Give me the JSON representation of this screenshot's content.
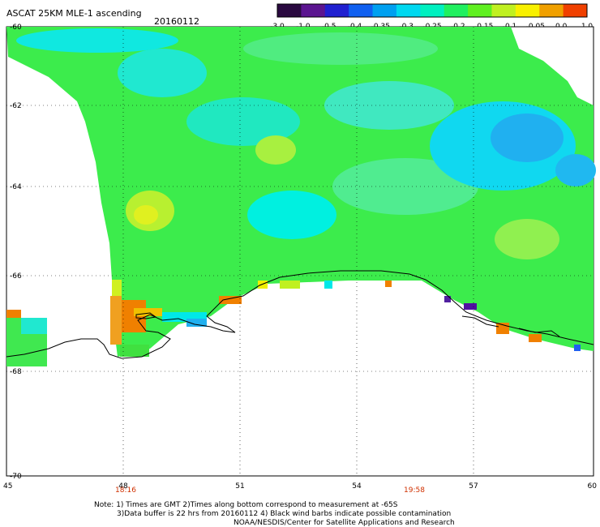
{
  "title": "ASCAT 25KM MLE-1 ascending",
  "date": "20160112",
  "colorbar": {
    "tick_labels": [
      "-3.0",
      "-1.0",
      "-0.5",
      "-0.4",
      "-0.35",
      "-0.3",
      "-0.25",
      "-0.2",
      "-0.15",
      "-0.1",
      "-0.05",
      "0.0",
      "1.0"
    ],
    "colors": [
      "#2a0a40",
      "#5b1590",
      "#2020d0",
      "#1060f0",
      "#00a0f0",
      "#00d8f0",
      "#00f0c0",
      "#20f060",
      "#60f020",
      "#c0f020",
      "#f8f000",
      "#f0a000",
      "#f04000"
    ]
  },
  "axes": {
    "lat_labels": [
      "-60",
      "-62",
      "-64",
      "-66",
      "-68",
      "-70"
    ],
    "lon_labels": [
      "45",
      "48",
      "51",
      "54",
      "57",
      "60"
    ]
  },
  "times": [
    "18:16",
    "19:58"
  ],
  "notes": [
    "Note: 1) Times are GMT 2)Times along bottom correspond to measurement at -65S",
    "3)Data buffer is 22 hrs from 20160112 4) Black wind barbs indicate possible contamination",
    "NOAA/NESDIS/Center for Satellite Applications and Research"
  ],
  "palette": {
    "background_field": "#3cec4c",
    "cyan_patch": "#00f0e8",
    "blue_patch": "#20b8f0",
    "yellow_patch": "#d8f020",
    "orange_patch": "#f08000",
    "purple_patch": "#6010a0",
    "coastline": "#000000",
    "grid": "#000000"
  }
}
